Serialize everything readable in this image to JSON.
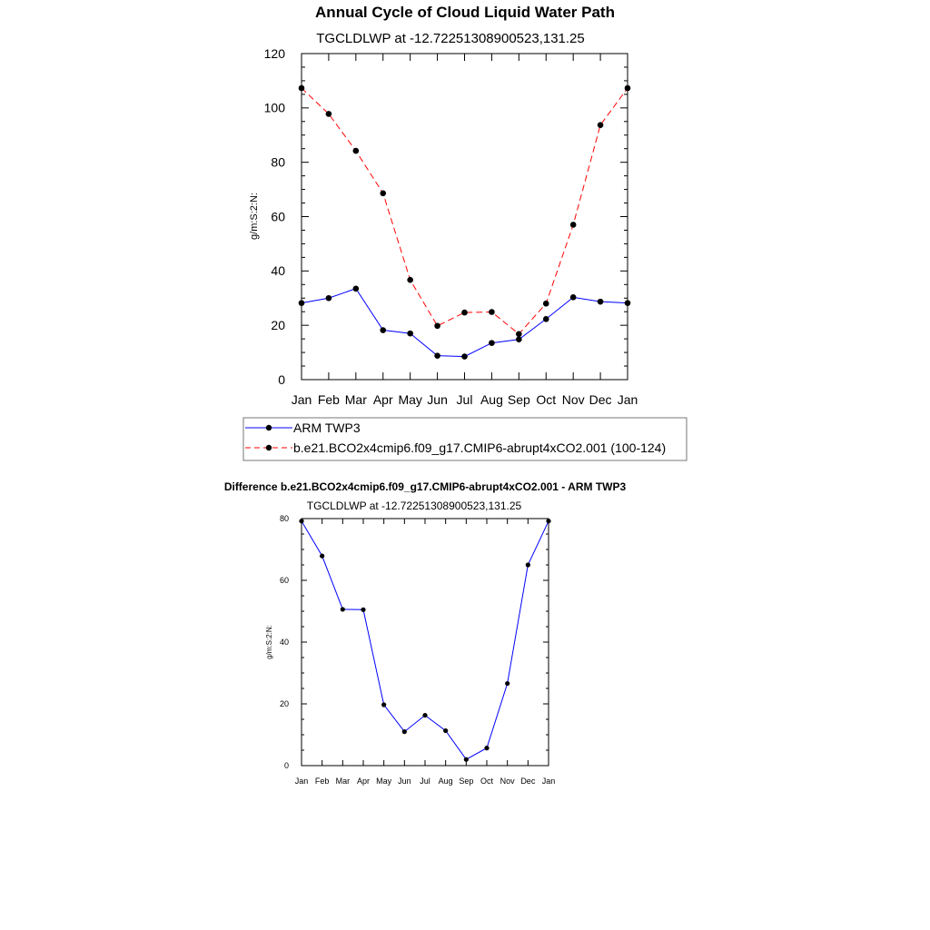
{
  "main_title": "Annual Cycle of Cloud Liquid Water Path",
  "chart_data": [
    {
      "type": "line",
      "subtitle": "TGCLDLWP at -12.72251308900523,131.25",
      "xlabel": "",
      "ylabel": "g/m:S:2:N:",
      "categories": [
        "Jan",
        "Feb",
        "Mar",
        "Apr",
        "May",
        "Jun",
        "Jul",
        "Aug",
        "Sep",
        "Oct",
        "Nov",
        "Dec",
        "Jan"
      ],
      "ylim": [
        0,
        120
      ],
      "yticks": [
        0,
        20,
        40,
        60,
        80,
        100,
        120
      ],
      "series": [
        {
          "name": "ARM TWP3",
          "color": "#0000ff",
          "dash": "solid",
          "values": [
            28.2,
            30.0,
            33.5,
            18.2,
            17.0,
            8.8,
            8.5,
            13.5,
            14.8,
            22.3,
            30.3,
            28.7,
            28.2
          ]
        },
        {
          "name": "b.e21.BCO2x4cmip6.f09_g17.CMIP6-abrupt4xCO2.001 (100-124)",
          "color": "#ff0000",
          "dash": "dashed",
          "values": [
            107.3,
            97.8,
            84.2,
            68.6,
            36.7,
            19.8,
            24.7,
            24.9,
            16.8,
            28.0,
            57.0,
            93.7,
            107.3
          ]
        }
      ],
      "legend": {
        "placement": "bottom",
        "items": [
          "ARM TWP3",
          "b.e21.BCO2x4cmip6.f09_g17.CMIP6-abrupt4xCO2.001 (100-124)"
        ]
      }
    },
    {
      "type": "line",
      "title": "Difference b.e21.BCO2x4cmip6.f09_g17.CMIP6-abrupt4xCO2.001 - ARM TWP3",
      "subtitle": "TGCLDLWP at -12.72251308900523,131.25",
      "xlabel": "",
      "ylabel": "g/m:S:2:N:",
      "categories": [
        "Jan",
        "Feb",
        "Mar",
        "Apr",
        "May",
        "Jun",
        "Jul",
        "Aug",
        "Sep",
        "Oct",
        "Nov",
        "Dec",
        "Jan"
      ],
      "ylim": [
        0,
        80
      ],
      "yticks": [
        0,
        20,
        40,
        60,
        80
      ],
      "series": [
        {
          "name": "Difference",
          "color": "#0000ff",
          "dash": "solid",
          "values": [
            79.2,
            67.9,
            50.6,
            50.5,
            19.7,
            11.0,
            16.3,
            11.3,
            2.0,
            5.7,
            26.6,
            65.0,
            79.2
          ]
        }
      ]
    }
  ]
}
